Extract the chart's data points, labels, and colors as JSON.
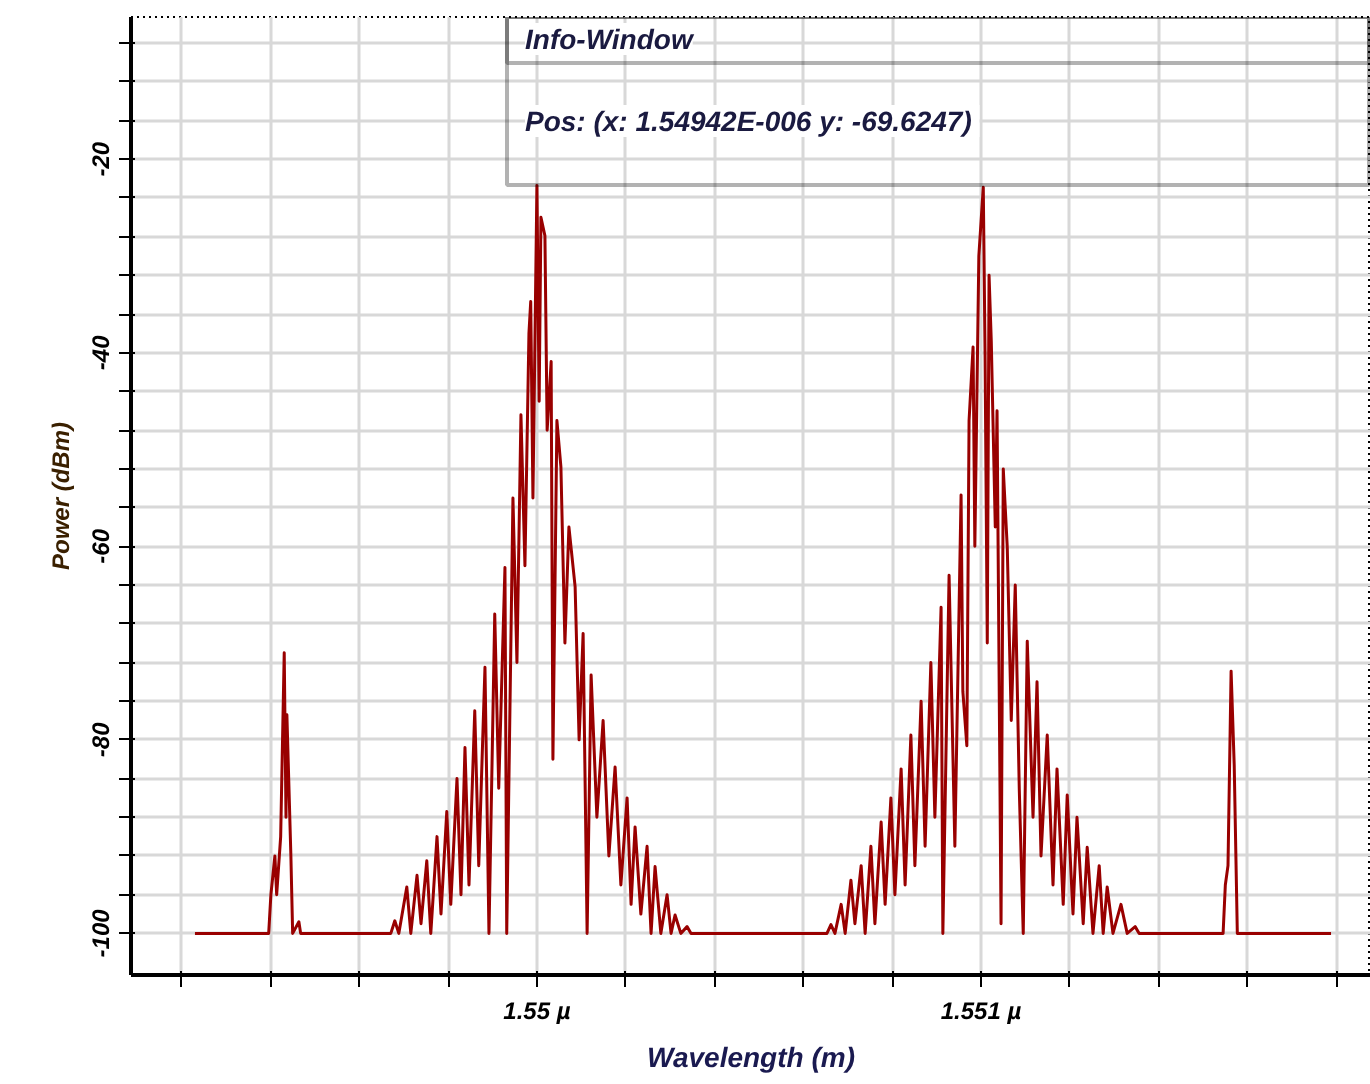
{
  "chart_data": {
    "type": "line",
    "xlabel": "Wavelength (m)",
    "ylabel": "Power (dBm)",
    "annotations": [
      "Info-Window",
      "Pos: (x: 1.54942E-006  y: -69.6247)"
    ],
    "xlim": [
      1.549086,
      1.551878
    ],
    "ylim": [
      -104.3,
      -5.3
    ],
    "xticks": [
      {
        "value": 1.5492,
        "label": null
      },
      {
        "value": 1.5494,
        "label": null
      },
      {
        "value": 1.5496,
        "label": null
      },
      {
        "value": 1.5498,
        "label": null
      },
      {
        "value": 1.55,
        "label": "1.55 µ"
      },
      {
        "value": 1.5502,
        "label": null
      },
      {
        "value": 1.5504,
        "label": null
      },
      {
        "value": 1.5506,
        "label": null
      },
      {
        "value": 1.5508,
        "label": null
      },
      {
        "value": 1.551,
        "label": "1.551 µ"
      },
      {
        "value": 1.5512,
        "label": null
      },
      {
        "value": 1.5514,
        "label": null
      },
      {
        "value": 1.5516,
        "label": null
      },
      {
        "value": 1.5518,
        "label": null
      }
    ],
    "yticks": [
      -100,
      {
        "value": -96,
        "label": null
      },
      {
        "value": -92,
        "label": null
      },
      {
        "value": -88,
        "label": null
      },
      {
        "value": -84,
        "label": null
      },
      -80,
      {
        "value": -76,
        "label": null
      },
      {
        "value": -72,
        "label": null
      },
      {
        "value": -68,
        "label": null
      },
      {
        "value": -64,
        "label": null
      },
      -60,
      {
        "value": -56,
        "label": null
      },
      {
        "value": -52,
        "label": null
      },
      {
        "value": -48,
        "label": null
      },
      {
        "value": -44,
        "label": null
      },
      -40,
      {
        "value": -36,
        "label": null
      },
      {
        "value": -32,
        "label": null
      },
      {
        "value": -28,
        "label": null
      },
      {
        "value": -24,
        "label": null
      },
      -20,
      {
        "value": -16,
        "label": null
      },
      {
        "value": -12,
        "label": null
      },
      {
        "value": -8,
        "label": null
      }
    ],
    "grid": true,
    "x": [
      1.54923,
      1.549396,
      1.549401,
      1.54941,
      1.549414,
      1.549423,
      1.549431,
      1.549435,
      1.549437,
      1.549446,
      1.54945,
      1.549464,
      1.549468,
      1.549671,
      1.54968,
      1.549689,
      1.549707,
      1.549716,
      1.54973,
      1.549739,
      1.549752,
      1.549761,
      1.549775,
      1.549784,
      1.549797,
      1.549806,
      1.54982,
      1.549829,
      1.549838,
      1.549847,
      1.54986,
      1.549869,
      1.549883,
      1.549892,
      1.549905,
      1.549914,
      1.549928,
      1.549932,
      1.549946,
      1.549955,
      1.549964,
      1.549973,
      1.549982,
      1.549986,
      1.549991,
      1.55,
      1.550005,
      1.550009,
      1.550018,
      1.550023,
      1.550032,
      1.550036,
      1.550045,
      1.550054,
      1.550063,
      1.550072,
      1.550086,
      1.550095,
      1.550104,
      1.550113,
      1.550122,
      1.550135,
      1.550149,
      1.550162,
      1.550176,
      1.550189,
      1.550203,
      1.550212,
      1.550221,
      1.550234,
      1.550248,
      1.550257,
      1.550266,
      1.550279,
      1.550293,
      1.550302,
      1.550311,
      1.550324,
      1.550338,
      1.550347,
      1.550653,
      1.550662,
      1.550671,
      1.550685,
      1.550694,
      1.550707,
      1.550716,
      1.55073,
      1.550739,
      1.550752,
      1.550761,
      1.550775,
      1.550784,
      1.550797,
      1.550806,
      1.55082,
      1.550829,
      1.550842,
      1.550851,
      1.550865,
      1.550874,
      1.550887,
      1.550896,
      1.55091,
      1.550914,
      1.550928,
      1.550941,
      1.550955,
      1.550959,
      1.550968,
      1.550973,
      1.550982,
      1.550986,
      1.550995,
      1.551005,
      1.551009,
      1.551014,
      1.551018,
      1.551023,
      1.551032,
      1.551036,
      1.551045,
      1.55105,
      1.551059,
      1.551068,
      1.551077,
      1.551086,
      1.551095,
      1.551104,
      1.551117,
      1.551126,
      1.551135,
      1.551149,
      1.551162,
      1.551171,
      1.551185,
      1.551194,
      1.551207,
      1.551216,
      1.55123,
      1.551239,
      1.551252,
      1.551266,
      1.551275,
      1.551284,
      1.551297,
      1.551315,
      1.551329,
      1.551347,
      1.551356,
      1.551545,
      1.55155,
      1.551556,
      1.551563,
      1.55157,
      1.551577,
      1.551788
    ],
    "series": [
      {
        "color": "#990000",
        "values": [
          -100,
          -100,
          -96,
          -92,
          -96,
          -90,
          -71,
          -88,
          -77.4,
          -92,
          -100,
          -98.8,
          -100,
          -100,
          -98.7,
          -100,
          -95.2,
          -100,
          -94,
          -99,
          -92.5,
          -100,
          -90,
          -98,
          -87.4,
          -97,
          -84,
          -96,
          -80.8,
          -95,
          -77,
          -93,
          -72.5,
          -100,
          -67,
          -85,
          -62.2,
          -100,
          -55,
          -72,
          -46.4,
          -62,
          -38,
          -34.7,
          -55,
          -22.7,
          -45,
          -26,
          -27.9,
          -48,
          -40.9,
          -82,
          -47,
          -51.8,
          -70,
          -58,
          -64.2,
          -80,
          -69,
          -100,
          -73.3,
          -88,
          -78,
          -92,
          -82.8,
          -95,
          -86,
          -97,
          -89,
          -98,
          -91,
          -100,
          -93.1,
          -100,
          -96,
          -100,
          -98.1,
          -100,
          -99.3,
          -100,
          -100,
          -99.1,
          -100,
          -97,
          -100,
          -94.5,
          -99,
          -93,
          -100,
          -91,
          -99,
          -88.5,
          -97,
          -86,
          -96,
          -83,
          -95,
          -79.5,
          -93,
          -76,
          -91,
          -72,
          -88,
          -66.3,
          -100,
          -63,
          -91,
          -54.7,
          -75,
          -80.6,
          -47,
          -39.4,
          -60,
          -30,
          -22.9,
          -40,
          -70,
          -32,
          -38.8,
          -58,
          -46,
          -99,
          -52,
          -60.1,
          -78,
          -64,
          -85,
          -100,
          -69.8,
          -88,
          -74,
          -92,
          -79.5,
          -95,
          -83,
          -97,
          -85.7,
          -98,
          -88,
          -99,
          -91.1,
          -100,
          -93,
          -100,
          -95.2,
          -100,
          -97,
          -100,
          -99.3,
          -100,
          -100,
          -95,
          -93,
          -72.9,
          -82.6,
          -100,
          -100
        ]
      }
    ]
  }
}
